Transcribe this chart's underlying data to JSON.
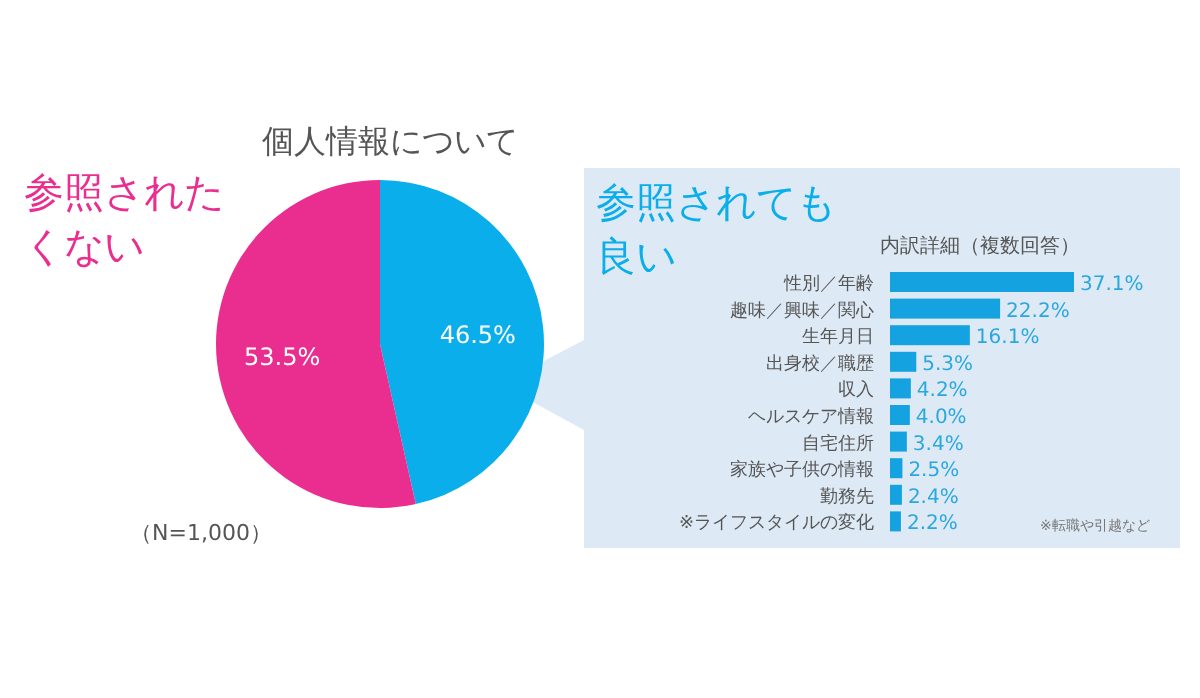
{
  "chart_data": [
    {
      "type": "pie",
      "title": "個人情報について",
      "categories": [
        "参照されても良い",
        "参照されたくない"
      ],
      "values": [
        46.5,
        53.5
      ],
      "colors": [
        "#0aaeea",
        "#ea2e8f"
      ],
      "value_labels": [
        "46.5%",
        "53.5%"
      ],
      "annotations": [
        "（N=1,000）"
      ]
    },
    {
      "type": "bar",
      "orientation": "horizontal",
      "title": "内訳詳細（複数回答）",
      "categories": [
        "性別／年齢",
        "趣味／興味／関心",
        "生年月日",
        "出身校／職歴",
        "収入",
        "ヘルスケア情報",
        "自宅住所",
        "家族や子供の情報",
        "勤務先",
        "※ライフスタイルの変化"
      ],
      "values": [
        37.1,
        22.2,
        16.1,
        5.3,
        4.2,
        4.0,
        3.4,
        2.5,
        2.4,
        2.2
      ],
      "color": "#14a3e0",
      "value_labels": [
        "37.1%",
        "22.2%",
        "16.1%",
        "5.3%",
        "4.2%",
        "4.0%",
        "3.4%",
        "2.5%",
        "2.4%",
        "2.2%"
      ],
      "annotations": [
        "※転職や引越など"
      ]
    }
  ]
}
